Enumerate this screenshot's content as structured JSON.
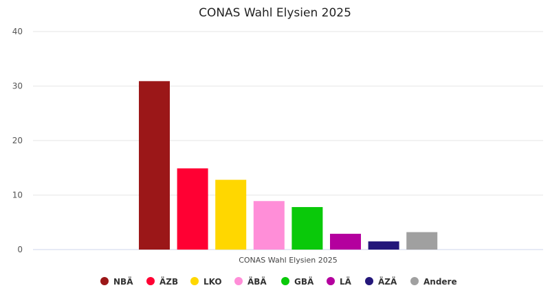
{
  "chart_data": {
    "type": "bar",
    "title": "CONAS Wahl Elysien 2025",
    "categories": [
      "CONAS Wahl Elysien 2025"
    ],
    "series": [
      {
        "name": "NBÄ",
        "color": "#9b1718",
        "values": [
          30.9
        ]
      },
      {
        "name": "ÄZB",
        "color": "#ff0033",
        "values": [
          14.9
        ]
      },
      {
        "name": "LKO",
        "color": "#ffd700",
        "values": [
          12.8
        ]
      },
      {
        "name": "ÄBÄ",
        "color": "#ff8ed8",
        "values": [
          8.9
        ]
      },
      {
        "name": "GBÄ",
        "color": "#0ac90a",
        "values": [
          7.8
        ]
      },
      {
        "name": "LÄ",
        "color": "#b4009e",
        "values": [
          2.9
        ]
      },
      {
        "name": "ÄZÄ",
        "color": "#24177a",
        "values": [
          1.5
        ]
      },
      {
        "name": "Andere",
        "color": "#a0a0a0",
        "values": [
          3.2
        ]
      }
    ],
    "yticks": [
      "0",
      "10",
      "20",
      "30",
      "40"
    ],
    "ylim": [
      0,
      40
    ],
    "grid": true,
    "legend_position": "bottom",
    "xlabel": "",
    "ylabel": ""
  }
}
